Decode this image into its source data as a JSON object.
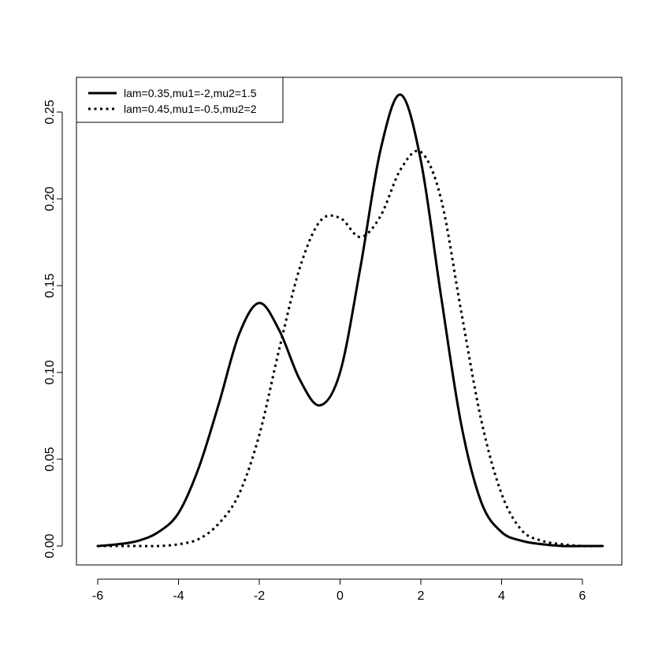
{
  "chart_data": {
    "type": "line",
    "title": "",
    "xlabel": "",
    "ylabel": "",
    "xlim": [
      -6.5,
      7.0
    ],
    "ylim": [
      -0.01,
      0.27
    ],
    "x_ticks": [
      -6,
      -4,
      -2,
      0,
      2,
      4,
      6
    ],
    "x_tick_labels": [
      "-6",
      "-4",
      "-2",
      "0",
      "2",
      "4",
      "6"
    ],
    "y_ticks": [
      0.0,
      0.05,
      0.1,
      0.15,
      0.2,
      0.25
    ],
    "y_tick_labels": [
      "0.00",
      "0.05",
      "0.10",
      "0.15",
      "0.20",
      "0.25"
    ],
    "grid": false,
    "legend_position": "top-left",
    "series": [
      {
        "name": "lam=0.35,mu1=-2,mu2=1.5",
        "line_style": "solid",
        "x": [
          -6,
          -5.5,
          -5,
          -4.5,
          -4,
          -3.5,
          -3,
          -2.5,
          -2,
          -1.5,
          -1,
          -0.5,
          0,
          0.5,
          1,
          1.5,
          2,
          2.5,
          3,
          3.5,
          4,
          4.5,
          5,
          5.5,
          6,
          6.5
        ],
        "y": [
          0.0,
          0.001,
          0.003,
          0.008,
          0.019,
          0.045,
          0.082,
          0.122,
          0.14,
          0.124,
          0.096,
          0.081,
          0.1,
          0.16,
          0.228,
          0.26,
          0.222,
          0.144,
          0.07,
          0.025,
          0.008,
          0.003,
          0.001,
          0.0,
          0.0,
          0.0
        ]
      },
      {
        "name": "lam=0.45,mu1=-0.5,mu2=2",
        "line_style": "dotted",
        "x": [
          -6,
          -5.5,
          -5,
          -4.5,
          -4,
          -3.5,
          -3,
          -2.5,
          -2,
          -1.5,
          -1,
          -0.5,
          0,
          0.5,
          1,
          1.5,
          2,
          2.5,
          3,
          3.5,
          4,
          4.5,
          5,
          5.5,
          6,
          6.5
        ],
        "y": [
          0.0,
          0.0,
          0.0,
          0.0,
          0.001,
          0.004,
          0.013,
          0.03,
          0.064,
          0.114,
          0.16,
          0.187,
          0.189,
          0.178,
          0.19,
          0.217,
          0.227,
          0.2,
          0.135,
          0.072,
          0.03,
          0.009,
          0.003,
          0.001,
          0.0,
          0.0
        ]
      }
    ]
  }
}
